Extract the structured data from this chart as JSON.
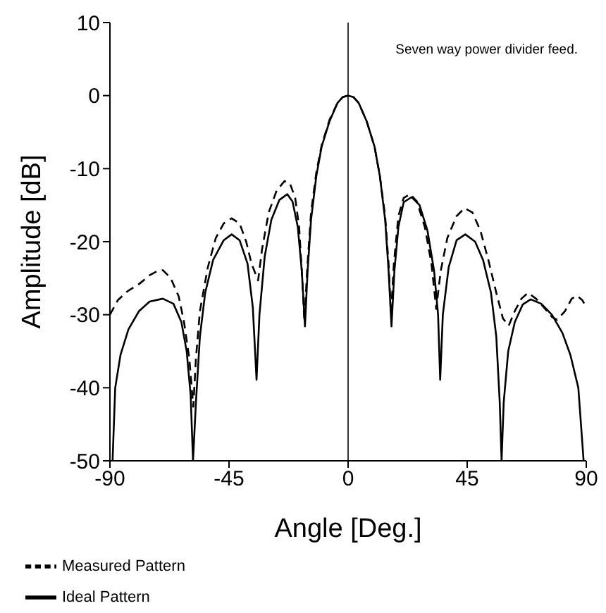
{
  "chart_data": {
    "type": "line",
    "xlabel": "Angle [Deg.]",
    "ylabel": "Amplitude [dB]",
    "xlim": [
      -90,
      90
    ],
    "xticks": [
      -90,
      -45,
      0,
      45,
      90
    ],
    "ylim": [
      -50,
      10
    ],
    "yticks": [
      -50,
      -40,
      -30,
      -20,
      -10,
      0,
      10
    ],
    "grid": false,
    "legend": "bottom left",
    "marker": "none",
    "annotations": [
      "Seven way power divider feed."
    ],
    "ref_lines": [
      {
        "axis": "x",
        "value": 0,
        "color": "#000000"
      }
    ],
    "series": [
      {
        "name": "Measured Pattern",
        "color": "#000000",
        "line_style": "dashed",
        "x": [
          -90,
          -87,
          -83.4,
          -79,
          -75,
          -72,
          -70,
          -67,
          -64,
          -62,
          -60,
          -58.5,
          -57.5,
          -56,
          -53,
          -50,
          -47,
          -44,
          -41,
          -38.5,
          -36.5,
          -34,
          -32.5,
          -30,
          -27,
          -24,
          -22,
          -20,
          -18.5,
          -17.5,
          -16.5,
          -15.5,
          -14,
          -12,
          -10,
          -7,
          -4,
          -2,
          0,
          2,
          4,
          7,
          10,
          12,
          14,
          15.3,
          16.2,
          17.3,
          19,
          21,
          23.5,
          26,
          29,
          31.5,
          33.3,
          35,
          37.5,
          41,
          44,
          47,
          50,
          53,
          56,
          58.5,
          60.7,
          63,
          65.5,
          68,
          71,
          74,
          77,
          79,
          82,
          84.5,
          86.5,
          88.5,
          90
        ],
        "values": [
          -30,
          -28,
          -26.8,
          -25.8,
          -24.6,
          -24,
          -23.9,
          -25,
          -27.5,
          -31,
          -36,
          -42.6,
          -36,
          -29.5,
          -23.5,
          -19.5,
          -17.5,
          -16.8,
          -17.5,
          -20,
          -23,
          -25.3,
          -21,
          -16,
          -13,
          -11.7,
          -12,
          -14,
          -18,
          -24,
          -31,
          -24,
          -16,
          -10.5,
          -6.8,
          -3.3,
          -1,
          -0.2,
          0,
          -0.2,
          -1,
          -3.5,
          -7,
          -11,
          -16.5,
          -23,
          -30,
          -23,
          -16.5,
          -14,
          -13.5,
          -14.5,
          -18,
          -23,
          -29.2,
          -24,
          -19.5,
          -16.5,
          -15.4,
          -16,
          -18.5,
          -22.5,
          -27,
          -30.5,
          -31.5,
          -29.5,
          -27.8,
          -27,
          -27.8,
          -29,
          -30.3,
          -30.7,
          -29.5,
          -27.8,
          -27.4,
          -28,
          -29
        ]
      },
      {
        "name": "Ideal Pattern",
        "color": "#000000",
        "line_style": "solid",
        "x": [
          -89,
          -88,
          -86,
          -83,
          -79,
          -75,
          -70,
          -66,
          -63,
          -61,
          -59.5,
          -58.6,
          -57.5,
          -56,
          -54,
          -51,
          -47,
          -44,
          -41,
          -38,
          -36,
          -34.6,
          -33.5,
          -31.5,
          -29,
          -26,
          -23,
          -21,
          -19,
          -17.5,
          -16.3,
          -15.3,
          -14,
          -12,
          -10,
          -7,
          -4,
          -2,
          0,
          2,
          4,
          7,
          10,
          12,
          14,
          15.3,
          16.4,
          17.5,
          19,
          21,
          24,
          27,
          30,
          32.5,
          34,
          34.8,
          35.8,
          38,
          41,
          44.3,
          48,
          51,
          54,
          56,
          57.3,
          58,
          58.8,
          60.5,
          63,
          66,
          69,
          73,
          77,
          81,
          84,
          87,
          89
        ],
        "values": [
          -50,
          -40,
          -35.5,
          -32,
          -29.5,
          -28.2,
          -27.8,
          -28.5,
          -31,
          -35,
          -41,
          -50,
          -42,
          -33,
          -27,
          -22.5,
          -19.8,
          -19,
          -19.8,
          -23,
          -29,
          -38.9,
          -30,
          -22,
          -17,
          -14.3,
          -13.5,
          -14.5,
          -18,
          -24,
          -31.6,
          -24,
          -17,
          -11,
          -7,
          -3.5,
          -1,
          -0.2,
          0,
          -0.2,
          -1,
          -3.5,
          -7,
          -11,
          -17,
          -24,
          -31.6,
          -24,
          -18,
          -14.6,
          -13.9,
          -15,
          -18.5,
          -24,
          -30,
          -38.9,
          -30,
          -23.5,
          -19.8,
          -19,
          -20,
          -22.5,
          -27,
          -33,
          -42,
          -50,
          -42,
          -35,
          -31,
          -28.6,
          -27.9,
          -28.5,
          -30,
          -32.5,
          -35.5,
          -40,
          -50
        ]
      }
    ]
  }
}
